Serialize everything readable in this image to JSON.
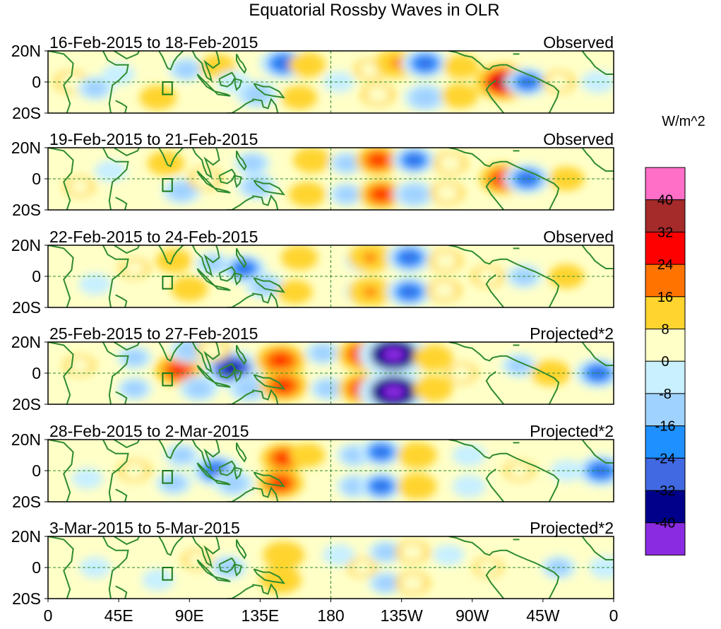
{
  "chart_data": {
    "type": "heatmap",
    "title": "Equatorial Rossby Waves in OLR",
    "units_label": "W/m^2",
    "y_tick_labels": [
      "20N",
      "0",
      "20S"
    ],
    "x_tick_labels": [
      "0",
      "45E",
      "90E",
      "135E",
      "180",
      "135W",
      "90W",
      "45W",
      "0"
    ],
    "x_range_deg": [
      0,
      360
    ],
    "y_range_deg": [
      -20,
      20
    ],
    "colorbar": {
      "levels": [
        40,
        32,
        24,
        16,
        8,
        0,
        -8,
        -16,
        -24,
        -32,
        -40
      ],
      "colors": [
        "#ff6ec7",
        "#a52a2a",
        "#ff0000",
        "#ff7300",
        "#ffd42e",
        "#ffffc8",
        "#c8f0ff",
        "#a0d2ff",
        "#1e90ff",
        "#4169e1",
        "#00008b",
        "#8a2be2"
      ]
    },
    "panels": [
      {
        "period": "16-Feb-2015 to 18-Feb-2015",
        "kind": "Observed",
        "blobs": [
          {
            "lon": 150,
            "lat": 12,
            "value": -20
          },
          {
            "lon": 133,
            "lat": -8,
            "value": -14
          },
          {
            "lon": 165,
            "lat": 11,
            "value": 10
          },
          {
            "lon": 160,
            "lat": -10,
            "value": 9
          },
          {
            "lon": 205,
            "lat": 8,
            "value": 6
          },
          {
            "lon": 210,
            "lat": -8,
            "value": 8
          },
          {
            "lon": 222,
            "lat": 12,
            "value": 16
          },
          {
            "lon": 240,
            "lat": 12,
            "value": -18
          },
          {
            "lon": 240,
            "lat": -10,
            "value": -15
          },
          {
            "lon": 263,
            "lat": 10,
            "value": 9
          },
          {
            "lon": 262,
            "lat": -9,
            "value": 10
          },
          {
            "lon": 290,
            "lat": 0,
            "value": 28
          },
          {
            "lon": 305,
            "lat": 0,
            "value": -16
          },
          {
            "lon": 325,
            "lat": 0,
            "value": 7
          },
          {
            "lon": 350,
            "lat": 0,
            "value": -7
          },
          {
            "lon": 70,
            "lat": -10,
            "value": 10
          },
          {
            "lon": 88,
            "lat": 8,
            "value": -9
          },
          {
            "lon": 108,
            "lat": 10,
            "value": 9
          },
          {
            "lon": 15,
            "lat": 0,
            "value": 8
          },
          {
            "lon": 30,
            "lat": -4,
            "value": -9
          },
          {
            "lon": 45,
            "lat": 5,
            "value": -6
          },
          {
            "lon": 185,
            "lat": 0,
            "value": -5
          },
          {
            "lon": 118,
            "lat": 0,
            "value": -7
          }
        ]
      },
      {
        "period": "19-Feb-2015 to 21-Feb-2015",
        "kind": "Observed",
        "blobs": [
          {
            "lon": 130,
            "lat": 10,
            "value": -9
          },
          {
            "lon": 133,
            "lat": -5,
            "value": -12
          },
          {
            "lon": 168,
            "lat": 12,
            "value": 11
          },
          {
            "lon": 165,
            "lat": -10,
            "value": 10
          },
          {
            "lon": 190,
            "lat": 10,
            "value": -8
          },
          {
            "lon": 190,
            "lat": -10,
            "value": -8
          },
          {
            "lon": 210,
            "lat": 12,
            "value": 17
          },
          {
            "lon": 212,
            "lat": -10,
            "value": 17
          },
          {
            "lon": 233,
            "lat": 12,
            "value": -16
          },
          {
            "lon": 233,
            "lat": -10,
            "value": -14
          },
          {
            "lon": 256,
            "lat": 10,
            "value": 8
          },
          {
            "lon": 254,
            "lat": -9,
            "value": 8
          },
          {
            "lon": 290,
            "lat": 0,
            "value": 20
          },
          {
            "lon": 305,
            "lat": 0,
            "value": -18
          },
          {
            "lon": 330,
            "lat": 0,
            "value": 9
          },
          {
            "lon": 85,
            "lat": -8,
            "value": -12
          },
          {
            "lon": 75,
            "lat": 10,
            "value": 10
          },
          {
            "lon": 100,
            "lat": 0,
            "value": 8
          },
          {
            "lon": 40,
            "lat": 5,
            "value": -6
          },
          {
            "lon": 20,
            "lat": -5,
            "value": 5
          }
        ]
      },
      {
        "period": "22-Feb-2015 to 24-Feb-2015",
        "kind": "Observed",
        "blobs": [
          {
            "lon": 125,
            "lat": 5,
            "value": -16
          },
          {
            "lon": 138,
            "lat": -6,
            "value": -12
          },
          {
            "lon": 160,
            "lat": 12,
            "value": 10
          },
          {
            "lon": 157,
            "lat": -10,
            "value": 9
          },
          {
            "lon": 200,
            "lat": 10,
            "value": -8
          },
          {
            "lon": 200,
            "lat": -10,
            "value": -8
          },
          {
            "lon": 205,
            "lat": 12,
            "value": 16
          },
          {
            "lon": 205,
            "lat": -10,
            "value": 16
          },
          {
            "lon": 230,
            "lat": 12,
            "value": -18
          },
          {
            "lon": 230,
            "lat": -10,
            "value": -18
          },
          {
            "lon": 253,
            "lat": 10,
            "value": 8
          },
          {
            "lon": 252,
            "lat": -9,
            "value": 8
          },
          {
            "lon": 280,
            "lat": 0,
            "value": 7
          },
          {
            "lon": 303,
            "lat": 0,
            "value": -9
          },
          {
            "lon": 330,
            "lat": 0,
            "value": 9
          },
          {
            "lon": 80,
            "lat": 10,
            "value": 9
          },
          {
            "lon": 90,
            "lat": -8,
            "value": 10
          },
          {
            "lon": 105,
            "lat": 8,
            "value": -8
          },
          {
            "lon": 30,
            "lat": -5,
            "value": -6
          },
          {
            "lon": 55,
            "lat": 5,
            "value": 5
          }
        ]
      },
      {
        "period": "25-Feb-2015 to 27-Feb-2015",
        "kind": "Projected*2",
        "blobs": [
          {
            "lon": 117,
            "lat": 3,
            "value": -28
          },
          {
            "lon": 128,
            "lat": -10,
            "value": -14
          },
          {
            "lon": 148,
            "lat": 8,
            "value": 22
          },
          {
            "lon": 150,
            "lat": -8,
            "value": 20
          },
          {
            "lon": 83,
            "lat": 2,
            "value": 20
          },
          {
            "lon": 90,
            "lat": 15,
            "value": -12
          },
          {
            "lon": 96,
            "lat": -10,
            "value": -12
          },
          {
            "lon": 55,
            "lat": 10,
            "value": -8
          },
          {
            "lon": 55,
            "lat": -10,
            "value": -8
          },
          {
            "lon": 105,
            "lat": 15,
            "value": 8
          },
          {
            "lon": 175,
            "lat": 13,
            "value": -9
          },
          {
            "lon": 178,
            "lat": -10,
            "value": -9
          },
          {
            "lon": 200,
            "lat": 12,
            "value": 22
          },
          {
            "lon": 200,
            "lat": -10,
            "value": 20
          },
          {
            "lon": 220,
            "lat": 12,
            "value": -38
          },
          {
            "lon": 220,
            "lat": -12,
            "value": -38
          },
          {
            "lon": 245,
            "lat": 10,
            "value": 12
          },
          {
            "lon": 245,
            "lat": -10,
            "value": 12
          },
          {
            "lon": 263,
            "lat": 0,
            "value": 6
          },
          {
            "lon": 300,
            "lat": 5,
            "value": -9
          },
          {
            "lon": 320,
            "lat": 0,
            "value": 12
          },
          {
            "lon": 350,
            "lat": 0,
            "value": -18
          },
          {
            "lon": 20,
            "lat": 5,
            "value": 6
          }
        ]
      },
      {
        "period": "28-Feb-2015 to 2-Mar-2015",
        "kind": "Projected*2",
        "blobs": [
          {
            "lon": 107,
            "lat": 0,
            "value": -20
          },
          {
            "lon": 118,
            "lat": -8,
            "value": -13
          },
          {
            "lon": 150,
            "lat": 8,
            "value": 18
          },
          {
            "lon": 148,
            "lat": -8,
            "value": 18
          },
          {
            "lon": 165,
            "lat": 10,
            "value": 9
          },
          {
            "lon": 85,
            "lat": 10,
            "value": -8
          },
          {
            "lon": 80,
            "lat": -8,
            "value": -9
          },
          {
            "lon": 55,
            "lat": 0,
            "value": 7
          },
          {
            "lon": 195,
            "lat": 10,
            "value": -9
          },
          {
            "lon": 195,
            "lat": -10,
            "value": -9
          },
          {
            "lon": 212,
            "lat": 12,
            "value": -16
          },
          {
            "lon": 212,
            "lat": -10,
            "value": -16
          },
          {
            "lon": 235,
            "lat": 10,
            "value": 12
          },
          {
            "lon": 235,
            "lat": -10,
            "value": 12
          },
          {
            "lon": 268,
            "lat": 10,
            "value": -7
          },
          {
            "lon": 268,
            "lat": -10,
            "value": -7
          },
          {
            "lon": 300,
            "lat": 0,
            "value": 5
          },
          {
            "lon": 352,
            "lat": 0,
            "value": -20
          },
          {
            "lon": 330,
            "lat": 0,
            "value": -6
          },
          {
            "lon": 25,
            "lat": -5,
            "value": -5
          }
        ]
      },
      {
        "period": "3-Mar-2015 to 5-Mar-2015",
        "kind": "Projected*2",
        "blobs": [
          {
            "lon": 150,
            "lat": 8,
            "value": 14
          },
          {
            "lon": 148,
            "lat": -8,
            "value": 14
          },
          {
            "lon": 115,
            "lat": 0,
            "value": -9
          },
          {
            "lon": 95,
            "lat": 5,
            "value": 5
          },
          {
            "lon": 70,
            "lat": -8,
            "value": -6
          },
          {
            "lon": 185,
            "lat": 8,
            "value": -6
          },
          {
            "lon": 200,
            "lat": 0,
            "value": 4
          },
          {
            "lon": 215,
            "lat": 10,
            "value": -8
          },
          {
            "lon": 215,
            "lat": -10,
            "value": -8
          },
          {
            "lon": 232,
            "lat": 10,
            "value": 8
          },
          {
            "lon": 232,
            "lat": -10,
            "value": 8
          },
          {
            "lon": 255,
            "lat": 8,
            "value": -5
          },
          {
            "lon": 325,
            "lat": 0,
            "value": -8
          },
          {
            "lon": 355,
            "lat": 0,
            "value": -7
          },
          {
            "lon": 280,
            "lat": 0,
            "value": 4
          },
          {
            "lon": 30,
            "lat": 0,
            "value": -5
          }
        ]
      }
    ]
  }
}
